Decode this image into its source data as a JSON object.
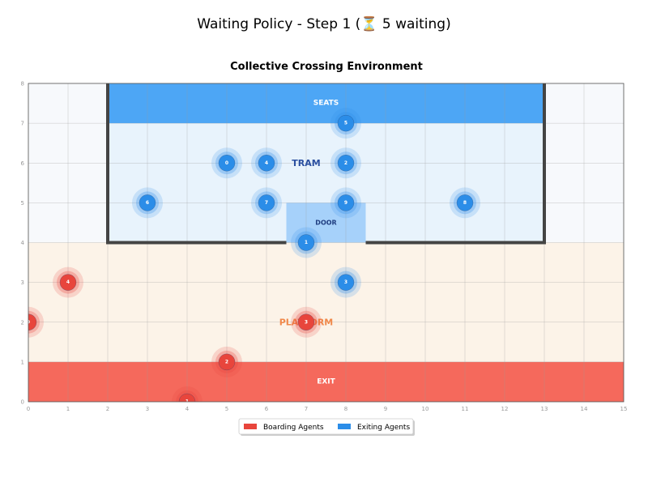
{
  "page_title": "Waiting Policy - Step 1 (⏳ 5 waiting)",
  "chart_data": {
    "type": "scatter",
    "title": "Collective Crossing Environment",
    "xlim": [
      0,
      15
    ],
    "ylim": [
      0,
      8
    ],
    "x_ticks": [
      "0",
      "1",
      "2",
      "3",
      "4",
      "5",
      "6",
      "7",
      "8",
      "9",
      "10",
      "11",
      "12",
      "13",
      "14",
      "15"
    ],
    "y_ticks": [
      "0",
      "1",
      "2",
      "3",
      "4",
      "5",
      "6",
      "7",
      "8"
    ],
    "grid": true,
    "zones": {
      "seats": {
        "label": "SEATS",
        "x": [
          2,
          13
        ],
        "y": [
          7,
          8
        ],
        "color": "#4da6f5"
      },
      "tram": {
        "label": "TRAM",
        "x": [
          2,
          13
        ],
        "y": [
          4,
          7
        ],
        "color": "#e8f3fc",
        "label_at": [
          7,
          6
        ]
      },
      "door": {
        "label": "DOOR",
        "x": [
          6.5,
          8.5
        ],
        "y": [
          4,
          5
        ],
        "color": "#a6d1fa"
      },
      "platform": {
        "label": "PLATFORM",
        "x": [
          0,
          15
        ],
        "y": [
          1,
          4
        ],
        "color": "#fcf3e8",
        "label_at": [
          7,
          2
        ]
      },
      "exit": {
        "label": "EXIT",
        "x": [
          0,
          15
        ],
        "y": [
          0,
          1
        ],
        "color": "#f5695c"
      },
      "outside": {
        "color": "#f7f9fc"
      }
    },
    "walls": {
      "tram_left_x": 2,
      "tram_right_x": 13,
      "tram_bottom_y": 4,
      "door_gap": [
        6.5,
        8.5
      ]
    },
    "series": [
      {
        "name": "Boarding Agents",
        "color": "#e8453c",
        "points": [
          {
            "id": "0",
            "x": 0,
            "y": 2
          },
          {
            "id": "1",
            "x": 4,
            "y": 0
          },
          {
            "id": "2",
            "x": 5,
            "y": 1
          },
          {
            "id": "3",
            "x": 7,
            "y": 2
          },
          {
            "id": "4",
            "x": 1,
            "y": 3
          }
        ]
      },
      {
        "name": "Exiting Agents",
        "color": "#2b8de8",
        "points": [
          {
            "id": "0",
            "x": 5,
            "y": 6
          },
          {
            "id": "1",
            "x": 7,
            "y": 4
          },
          {
            "id": "2",
            "x": 8,
            "y": 6
          },
          {
            "id": "3",
            "x": 8,
            "y": 3
          },
          {
            "id": "4",
            "x": 6,
            "y": 6
          },
          {
            "id": "5",
            "x": 8,
            "y": 7
          },
          {
            "id": "6",
            "x": 3,
            "y": 5
          },
          {
            "id": "7",
            "x": 6,
            "y": 5
          },
          {
            "id": "8",
            "x": 11,
            "y": 5
          },
          {
            "id": "9",
            "x": 8,
            "y": 5
          }
        ]
      }
    ],
    "legend": {
      "position": "bottom-center",
      "entries": [
        "Boarding Agents",
        "Exiting Agents"
      ]
    }
  }
}
